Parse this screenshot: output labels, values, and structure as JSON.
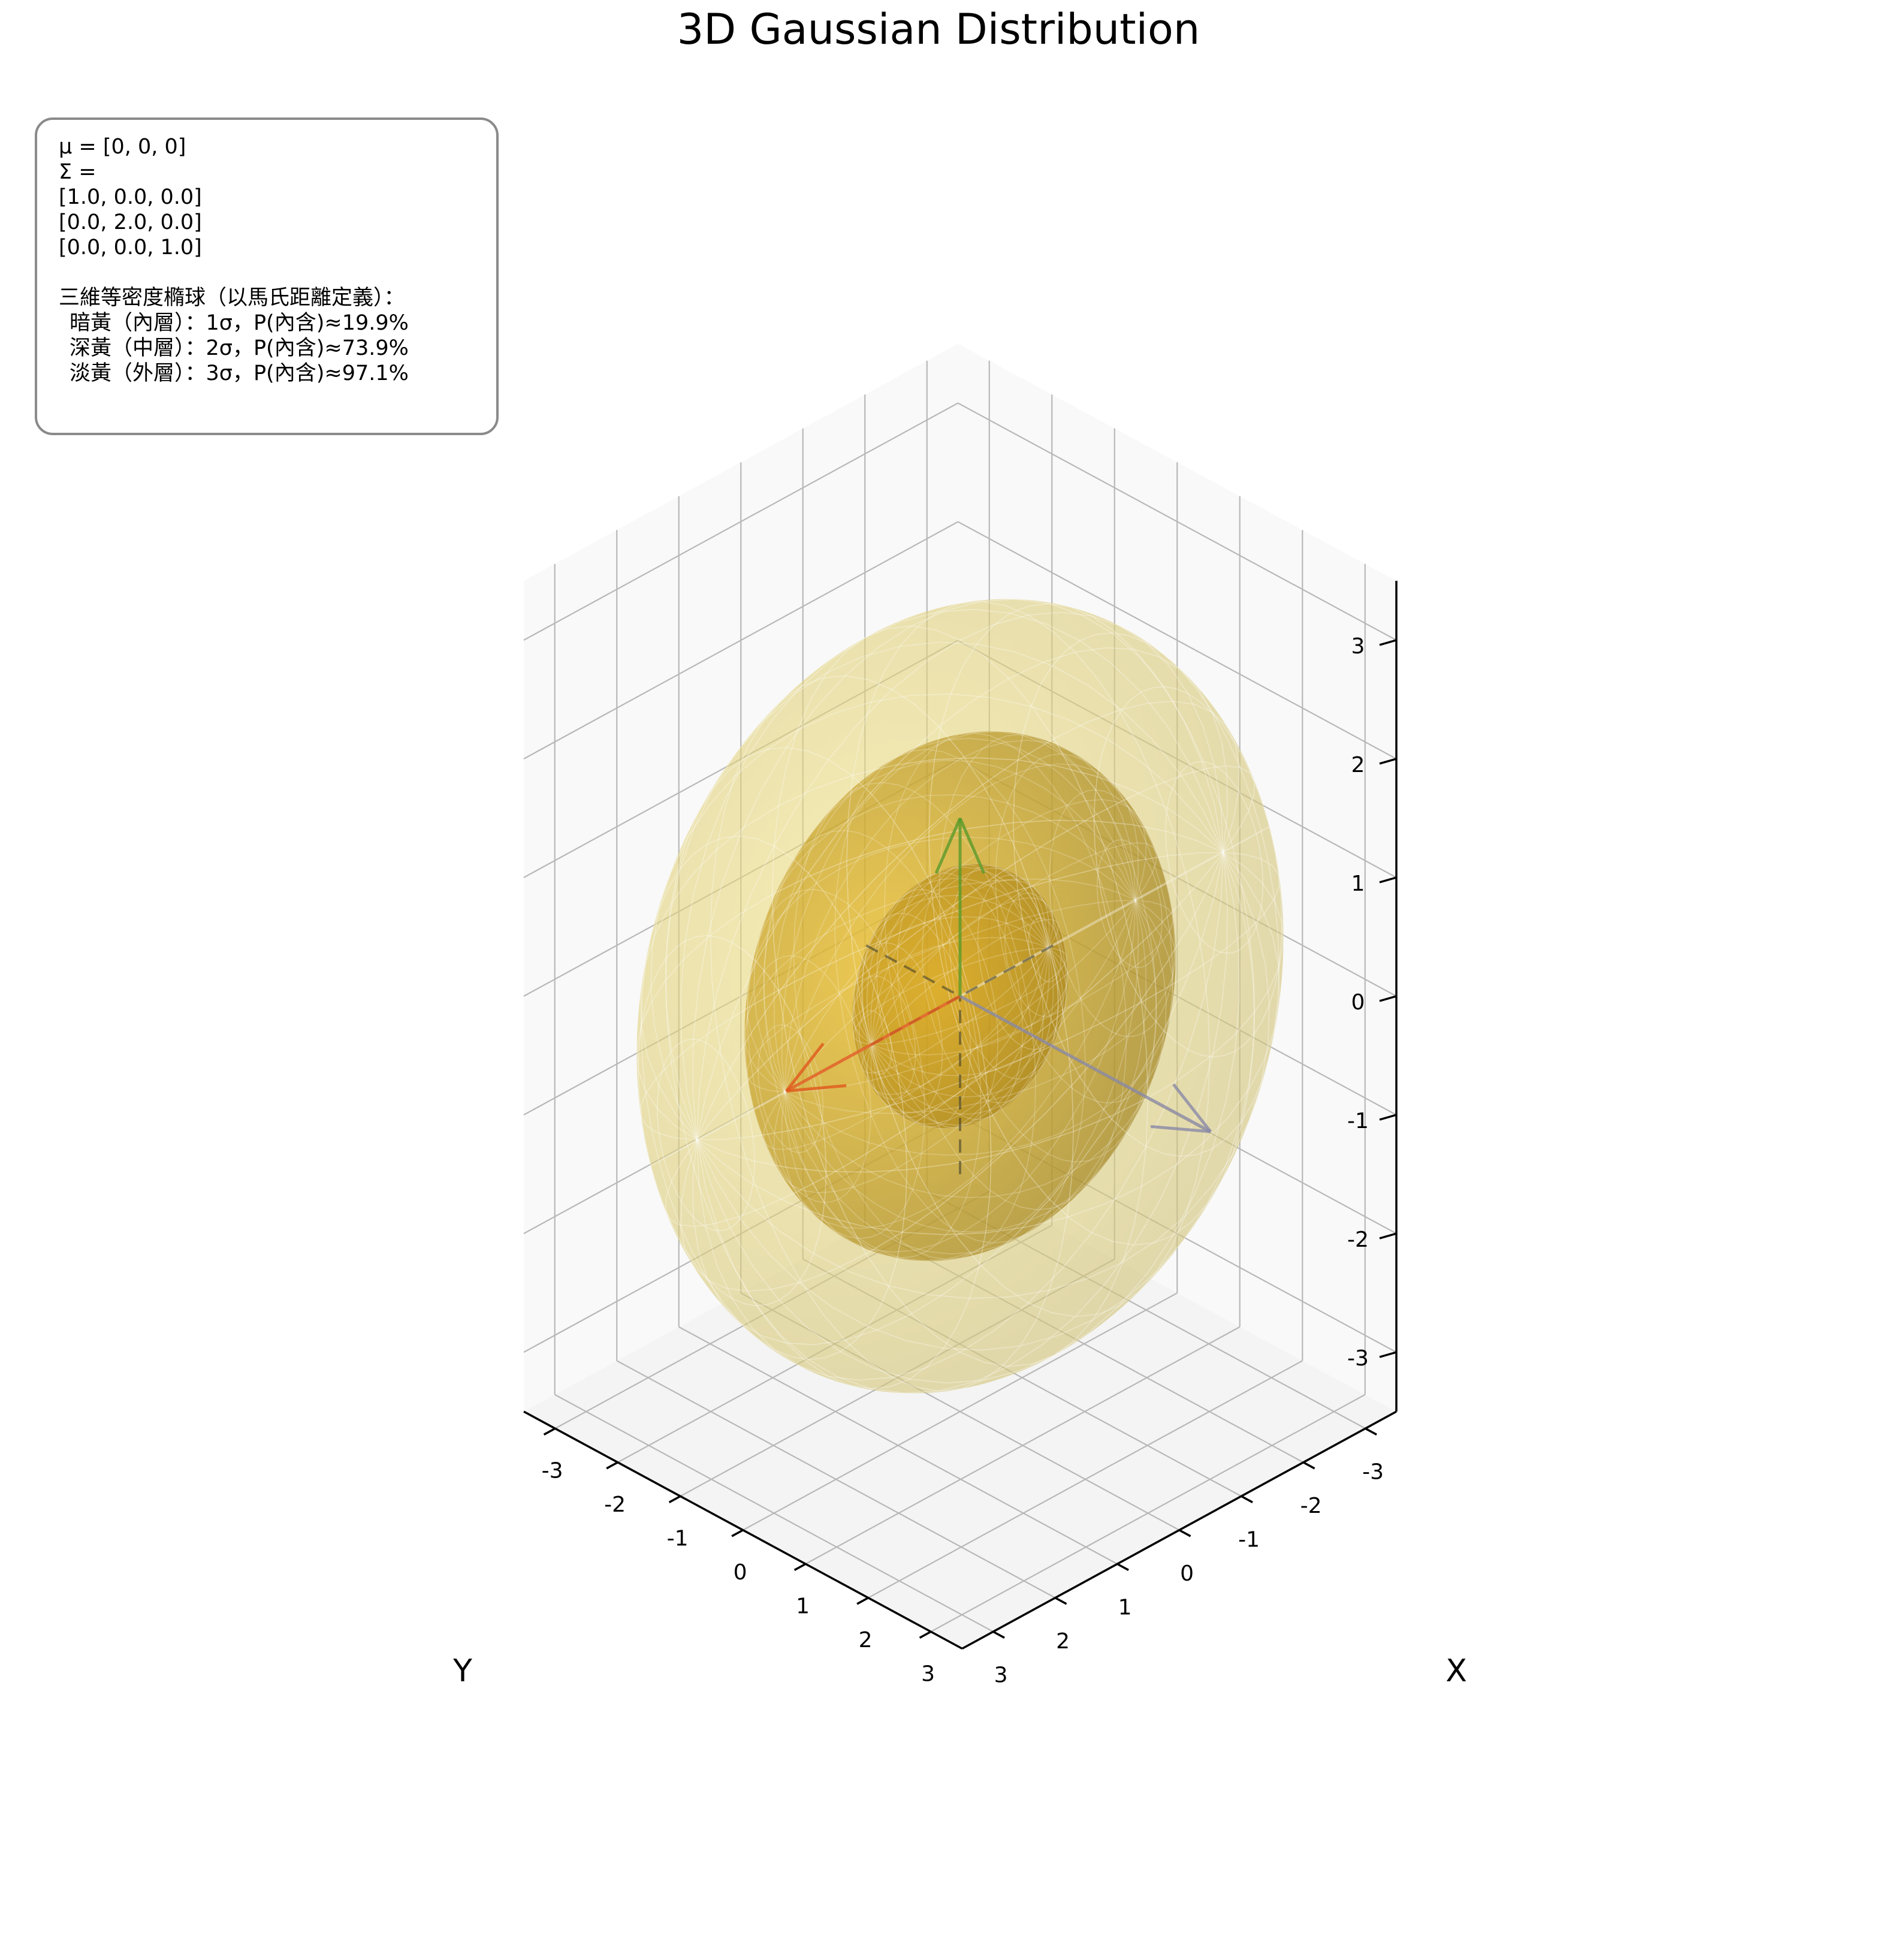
{
  "title": "3D Gaussian Distribution",
  "info": {
    "mu_line": "μ = [0, 0, 0]",
    "sigma_label": "Σ =",
    "matrix_rows": [
      "[1.0, 0.0, 0.0]",
      "[0.0, 2.0, 0.0]",
      "[0.0, 0.0, 1.0]"
    ],
    "shells_heading": "三維等密度橢球（以馬氏距離定義）：",
    "shells": [
      {
        "text": "暗黃（內層）：1σ，P(內含)≈19.9%"
      },
      {
        "text": "深黃（中層）：2σ，P(內含)≈73.9%"
      },
      {
        "text": "淡黃（外層）：3σ，P(內含)≈97.1%"
      }
    ]
  },
  "chart_data": {
    "type": "surface-3d",
    "mean": [
      0,
      0,
      0
    ],
    "covariance": [
      [
        1.0,
        0.0,
        0.0
      ],
      [
        0.0,
        2.0,
        0.0
      ],
      [
        0.0,
        0.0,
        1.0
      ]
    ],
    "xlabel": "X",
    "ylabel": "Y",
    "zlabel": "",
    "xlim": [
      -3.5,
      3.5
    ],
    "ylim": [
      -3.5,
      3.5
    ],
    "zlim": [
      -3.5,
      3.5
    ],
    "x_ticks": [
      "-3",
      "-2",
      "-1",
      "0",
      "1",
      "2",
      "3"
    ],
    "y_ticks": [
      "-3",
      "-2",
      "-1",
      "0",
      "1",
      "2",
      "3"
    ],
    "z_ticks": [
      "-3",
      "-2",
      "-1",
      "0",
      "1",
      "2",
      "3"
    ],
    "grid": true,
    "shells": [
      {
        "sigma": 1,
        "probability": 0.199,
        "color": "#c9960a"
      },
      {
        "sigma": 2,
        "probability": 0.739,
        "color": "#e0b21f"
      },
      {
        "sigma": 3,
        "probability": 0.971,
        "color": "#f3e48a"
      }
    ],
    "principal_axes": [
      {
        "direction": [
          1,
          0,
          0
        ],
        "color": "#8a8aa8"
      },
      {
        "direction": [
          0,
          1,
          0
        ],
        "color": "#e0581a"
      },
      {
        "direction": [
          0,
          0,
          1
        ],
        "color": "#5a9a2a"
      }
    ]
  }
}
